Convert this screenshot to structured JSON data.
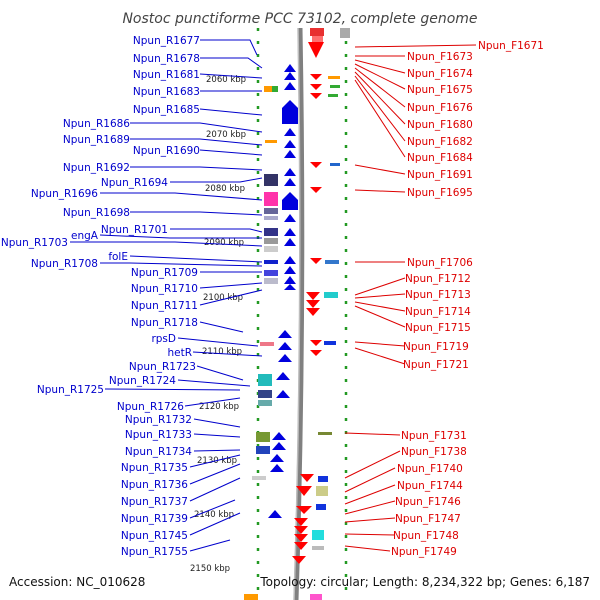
{
  "title": "Nostoc punctiforme PCC 73102, complete genome",
  "footer": {
    "accession": "Accession: NC_010628",
    "summary": "Topology: circular; Length: 8,234,322 bp; Genes: 6,187"
  },
  "colors": {
    "left_labels": "#0000cc",
    "right_labels": "#dd0000",
    "backbone": "#808080",
    "grid": "#229922"
  },
  "kbp_labels": [
    "2060 kbp",
    "2070 kbp",
    "2080 kbp",
    "2090 kbp",
    "2100 kbp",
    "2110 kbp",
    "2120 kbp",
    "2130 kbp",
    "2140 kbp",
    "2150 kbp"
  ],
  "left_genes": [
    "Npun_R1677",
    "Npun_R1678",
    "Npun_R1681",
    "Npun_R1683",
    "Npun_R1685",
    "Npun_R1686",
    "Npun_R1689",
    "Npun_R1690",
    "Npun_R1692",
    "Npun_R1694",
    "Npun_R1696",
    "Npun_R1698",
    "Npun_R1701",
    "engA",
    "Npun_R1703",
    "folE",
    "Npun_R1708",
    "Npun_R1709",
    "Npun_R1710",
    "Npun_R1711",
    "Npun_R1718",
    "rpsD",
    "hetR",
    "Npun_R1723",
    "Npun_R1724",
    "Npun_R1725",
    "Npun_R1726",
    "Npun_R1732",
    "Npun_R1733",
    "Npun_R1734",
    "Npun_R1735",
    "Npun_R1736",
    "Npun_R1737",
    "Npun_R1739",
    "Npun_R1745",
    "Npun_R1755"
  ],
  "right_genes": [
    "Npun_F1671",
    "Npun_F1673",
    "Npun_F1674",
    "Npun_F1675",
    "Npun_F1676",
    "Npun_F1680",
    "Npun_F1682",
    "Npun_F1684",
    "Npun_F1691",
    "Npun_F1695",
    "Npun_F1706",
    "Npun_F1712",
    "Npun_F1713",
    "Npun_F1714",
    "Npun_F1715",
    "Npun_F1719",
    "Npun_F1721",
    "Npun_F1731",
    "Npun_F1738",
    "Npun_F1740",
    "Npun_F1744",
    "Npun_F1746",
    "Npun_F1747",
    "Npun_F1748",
    "Npun_F1749"
  ]
}
